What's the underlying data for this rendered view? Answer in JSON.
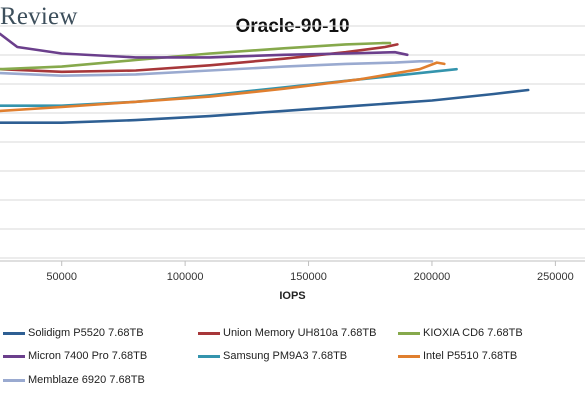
{
  "brand": {
    "name": "Review"
  },
  "chart_data": {
    "type": "line",
    "title": "Oracle-90-10",
    "xlabel": "IOPS",
    "ylabel": "",
    "x_ticks": [
      50000,
      100000,
      150000,
      200000,
      250000
    ],
    "xlim": [
      25000,
      262000
    ],
    "ylim": [
      0,
      10
    ],
    "grid": "horizontal",
    "legend_position": "bottom",
    "series": [
      {
        "name": "Solidigm P5520 7.68TB",
        "color": "#2e5f93",
        "x": [
          25000,
          50000,
          80000,
          110000,
          140000,
          170000,
          200000,
          225000,
          239000
        ],
        "y": [
          5.3,
          5.3,
          5.4,
          5.55,
          5.75,
          5.95,
          6.15,
          6.4,
          6.55
        ]
      },
      {
        "name": "Union Memory UH810a 7.68TB",
        "color": "#a7373a",
        "x": [
          25000,
          50000,
          80000,
          110000,
          140000,
          165000,
          181000,
          186000
        ],
        "y": [
          7.35,
          7.25,
          7.3,
          7.5,
          7.75,
          8.0,
          8.2,
          8.3
        ]
      },
      {
        "name": "KIOXIA CD6 7.68TB",
        "color": "#86a94c",
        "x": [
          25000,
          50000,
          80000,
          110000,
          140000,
          165000,
          180000,
          183000
        ],
        "y": [
          7.35,
          7.45,
          7.7,
          7.95,
          8.15,
          8.3,
          8.35,
          8.35
        ]
      },
      {
        "name": "Micron 7400 Pro 7.68TB",
        "color": "#6b3f8c",
        "x": [
          25000,
          32000,
          50000,
          80000,
          110000,
          140000,
          165000,
          185000,
          190000
        ],
        "y": [
          8.7,
          8.2,
          7.95,
          7.8,
          7.8,
          7.9,
          7.95,
          8.0,
          7.9
        ]
      },
      {
        "name": "Samsung PM9A3 7.68TB",
        "color": "#3494ad",
        "x": [
          25000,
          50000,
          80000,
          110000,
          140000,
          170000,
          195000,
          210000
        ],
        "y": [
          5.95,
          5.95,
          6.1,
          6.35,
          6.65,
          6.95,
          7.2,
          7.35
        ]
      },
      {
        "name": "Intel P5510 7.68TB",
        "color": "#e07f2f",
        "x": [
          25000,
          50000,
          80000,
          110000,
          140000,
          170000,
          195000,
          202000,
          205000
        ],
        "y": [
          5.75,
          5.9,
          6.1,
          6.3,
          6.6,
          6.95,
          7.35,
          7.6,
          7.55
        ]
      },
      {
        "name": "Memblaze 6920 7.68TB",
        "color": "#9aaad0",
        "x": [
          25000,
          50000,
          80000,
          110000,
          140000,
          165000,
          185000,
          195000,
          200000
        ],
        "y": [
          7.2,
          7.1,
          7.15,
          7.3,
          7.45,
          7.55,
          7.6,
          7.65,
          7.65
        ]
      }
    ]
  }
}
